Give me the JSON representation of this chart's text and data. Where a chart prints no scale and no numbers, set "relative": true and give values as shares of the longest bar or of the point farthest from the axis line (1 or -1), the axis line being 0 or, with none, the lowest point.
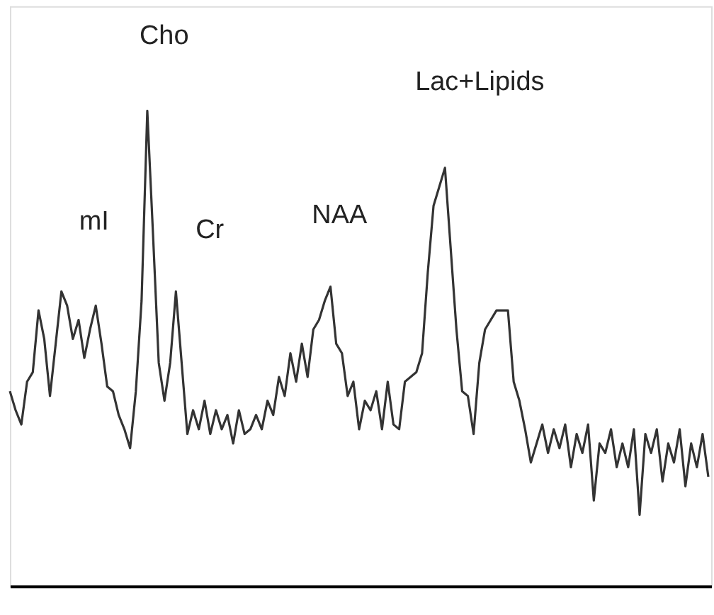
{
  "chart_data": {
    "type": "line",
    "relative": true,
    "color": "#333333",
    "categories": [
      null,
      null,
      null,
      null,
      null,
      null,
      null,
      null,
      null,
      null,
      null,
      null,
      null,
      null,
      null,
      null,
      null,
      null,
      null,
      null,
      null,
      null,
      null,
      null,
      null,
      null,
      null,
      null,
      null,
      null,
      null,
      null,
      null,
      null,
      null,
      null,
      null,
      null,
      null,
      null,
      null,
      null,
      null,
      null,
      null,
      null,
      null,
      null,
      null,
      null,
      null,
      null,
      null,
      null,
      null,
      null,
      null,
      null,
      null,
      null,
      null,
      null,
      null,
      null,
      null,
      null,
      null,
      null,
      null,
      null,
      null,
      null,
      null,
      null,
      null,
      null,
      null,
      null,
      null,
      null,
      null,
      null,
      null,
      null,
      null,
      null,
      null,
      null,
      null,
      null,
      null,
      null,
      null,
      null,
      null,
      null,
      null,
      null,
      null,
      null,
      null,
      null,
      null,
      null,
      null,
      null,
      null,
      null,
      null,
      null,
      null,
      null,
      null,
      null,
      null,
      null,
      null,
      null,
      null,
      null,
      null,
      null,
      null
    ],
    "values": [
      0.41,
      0.37,
      0.34,
      0.43,
      0.45,
      0.58,
      0.52,
      0.4,
      0.51,
      0.62,
      0.59,
      0.52,
      0.56,
      0.48,
      0.54,
      0.59,
      0.51,
      0.42,
      0.41,
      0.36,
      0.33,
      0.29,
      0.41,
      0.6,
      1.0,
      0.74,
      0.47,
      0.39,
      0.47,
      0.62,
      0.47,
      0.32,
      0.37,
      0.33,
      0.39,
      0.32,
      0.37,
      0.33,
      0.36,
      0.3,
      0.37,
      0.32,
      0.33,
      0.36,
      0.33,
      0.39,
      0.36,
      0.44,
      0.4,
      0.49,
      0.43,
      0.51,
      0.44,
      0.54,
      0.56,
      0.6,
      0.63,
      0.51,
      0.49,
      0.4,
      0.43,
      0.33,
      0.39,
      0.37,
      0.41,
      0.33,
      0.43,
      0.34,
      0.33,
      0.43,
      0.44,
      0.45,
      0.49,
      0.66,
      0.8,
      0.84,
      0.88,
      0.71,
      0.54,
      0.41,
      0.4,
      0.32,
      0.47,
      0.54,
      0.56,
      0.58,
      0.58,
      0.58,
      0.43,
      0.39,
      0.33,
      0.26,
      0.3,
      0.34,
      0.28,
      0.33,
      0.29,
      0.34,
      0.25,
      0.32,
      0.28,
      0.34,
      0.18,
      0.3,
      0.28,
      0.33,
      0.25,
      0.3,
      0.25,
      0.33,
      0.15,
      0.32,
      0.28,
      0.33,
      0.22,
      0.3,
      0.26,
      0.33,
      0.21,
      0.3,
      0.25,
      0.32,
      0.23
    ],
    "tick_labels": false,
    "annotations": [
      "mI",
      "Cho",
      "Cr",
      "NAA",
      "Lac+Lipids"
    ]
  }
}
